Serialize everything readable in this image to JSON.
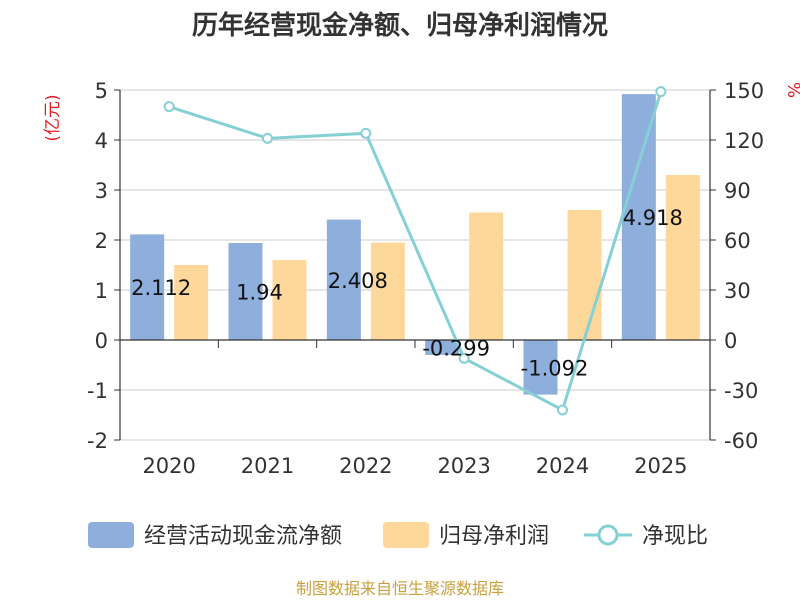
{
  "chart_data": {
    "type": "bar",
    "title": "历年经营现金净额、归母净利润情况",
    "categories": [
      "2020",
      "2021",
      "2022",
      "2023",
      "2024",
      "2025"
    ],
    "series": [
      {
        "name": "经营活动现金流净额",
        "kind": "bar",
        "axis": "left",
        "color": "#8eaedb",
        "values": [
          2.112,
          1.94,
          2.408,
          -0.299,
          -1.092,
          4.918
        ],
        "labels": [
          "2.112",
          "1.94",
          "2.408",
          "-0.299",
          "-1.092",
          "4.918"
        ]
      },
      {
        "name": "归母净利润",
        "kind": "bar",
        "axis": "left",
        "color": "#fdd89a",
        "values": [
          1.5,
          1.6,
          1.95,
          2.55,
          2.6,
          3.3
        ]
      },
      {
        "name": "净现比",
        "kind": "line",
        "axis": "right",
        "color": "#85d0d5",
        "values": [
          140,
          121,
          124,
          -11,
          -42,
          149
        ]
      }
    ],
    "left_axis": {
      "unit": "(亿元)",
      "min": -2,
      "max": 5,
      "ticks": [
        -2,
        -1,
        0,
        1,
        2,
        3,
        4,
        5
      ]
    },
    "right_axis": {
      "unit": "%",
      "min": -60,
      "max": 150,
      "ticks": [
        -60,
        -30,
        0,
        30,
        60,
        90,
        120,
        150
      ]
    },
    "legend_position": "bottom",
    "grid": true
  },
  "source": "制图数据来自恒生聚源数据库"
}
